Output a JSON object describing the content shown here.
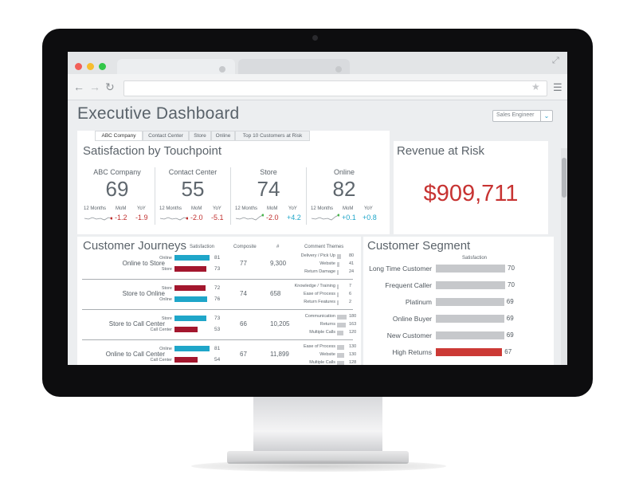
{
  "page": {
    "title": "Executive Dashboard",
    "role_selector": "Sales Engineer"
  },
  "tabs": [
    "ABC Company",
    "Contact Center",
    "Store",
    "Online",
    "Top 10 Customers at Risk"
  ],
  "satisfaction": {
    "title": "Satisfaction by Touchpoint",
    "labels": {
      "months": "12 Months",
      "mom": "MoM",
      "yoy": "YoY"
    },
    "touchpoints": [
      {
        "name": "ABC Company",
        "score": "69",
        "mom": "-1.2",
        "yoy": "-1.9",
        "mom_dir": "down",
        "yoy_dir": "down"
      },
      {
        "name": "Contact Center",
        "score": "55",
        "mom": "-2.0",
        "yoy": "-5.1",
        "mom_dir": "down",
        "yoy_dir": "down"
      },
      {
        "name": "Store",
        "score": "74",
        "mom": "-2.0",
        "yoy": "+4.2",
        "mom_dir": "down",
        "yoy_dir": "up"
      },
      {
        "name": "Online",
        "score": "82",
        "mom": "+0.1",
        "yoy": "+0.8",
        "mom_dir": "up",
        "yoy_dir": "up"
      }
    ]
  },
  "revenue": {
    "title": "Revenue at Risk",
    "value": "$909,711"
  },
  "journeys": {
    "title": "Customer Journeys",
    "columns": {
      "satisfaction": "Satisfaction",
      "composite": "Composite",
      "count": "#",
      "themes": "Comment Themes"
    },
    "rows": [
      {
        "name": "Online to Store",
        "composite": "77",
        "count": "9,300",
        "bars": [
          {
            "label": "Online",
            "value": 81,
            "color": "#1fa6c9"
          },
          {
            "label": "Store",
            "value": 73,
            "color": "#a3172e"
          }
        ],
        "themes": [
          {
            "label": "Delivery / Pick Up",
            "value": 80
          },
          {
            "label": "Website",
            "value": 41
          },
          {
            "label": "Return Damage",
            "value": 24
          }
        ]
      },
      {
        "name": "Store to Online",
        "composite": "74",
        "count": "658",
        "bars": [
          {
            "label": "Store",
            "value": 72,
            "color": "#a3172e"
          },
          {
            "label": "Online",
            "value": 76,
            "color": "#1fa6c9"
          }
        ],
        "themes": [
          {
            "label": "Knowledge / Training",
            "value": 7
          },
          {
            "label": "Ease of Process",
            "value": 6
          },
          {
            "label": "Return Features",
            "value": 2
          }
        ]
      },
      {
        "name": "Store to Call Center",
        "composite": "66",
        "count": "10,205",
        "bars": [
          {
            "label": "Store",
            "value": 73,
            "color": "#1fa6c9"
          },
          {
            "label": "Call Center",
            "value": 53,
            "color": "#a3172e"
          }
        ],
        "themes": [
          {
            "label": "Communication",
            "value": 180
          },
          {
            "label": "Returns",
            "value": 163
          },
          {
            "label": "Multiple Calls",
            "value": 120
          }
        ]
      },
      {
        "name": "Online to Call Center",
        "composite": "67",
        "count": "11,899",
        "bars": [
          {
            "label": "Online",
            "value": 81,
            "color": "#1fa6c9"
          },
          {
            "label": "Call Center",
            "value": 54,
            "color": "#a3172e"
          }
        ],
        "themes": [
          {
            "label": "Ease of Process",
            "value": 130
          },
          {
            "label": "Website",
            "value": 130
          },
          {
            "label": "Multiple Calls",
            "value": 128
          }
        ]
      }
    ]
  },
  "segment": {
    "title": "Customer Segment",
    "column": "Satisfaction",
    "rows": [
      {
        "name": "Long Time Customer",
        "value": 70,
        "highlight": false
      },
      {
        "name": "Frequent Caller",
        "value": 70,
        "highlight": false
      },
      {
        "name": "Platinum",
        "value": 69,
        "highlight": false
      },
      {
        "name": "Online Buyer",
        "value": 69,
        "highlight": false
      },
      {
        "name": "New Customer",
        "value": 69,
        "highlight": false
      },
      {
        "name": "High Returns",
        "value": 67,
        "highlight": true
      }
    ]
  },
  "colors": {
    "accent_blue": "#1fa6c9",
    "accent_red": "#c73332",
    "dark_red": "#a3172e"
  }
}
